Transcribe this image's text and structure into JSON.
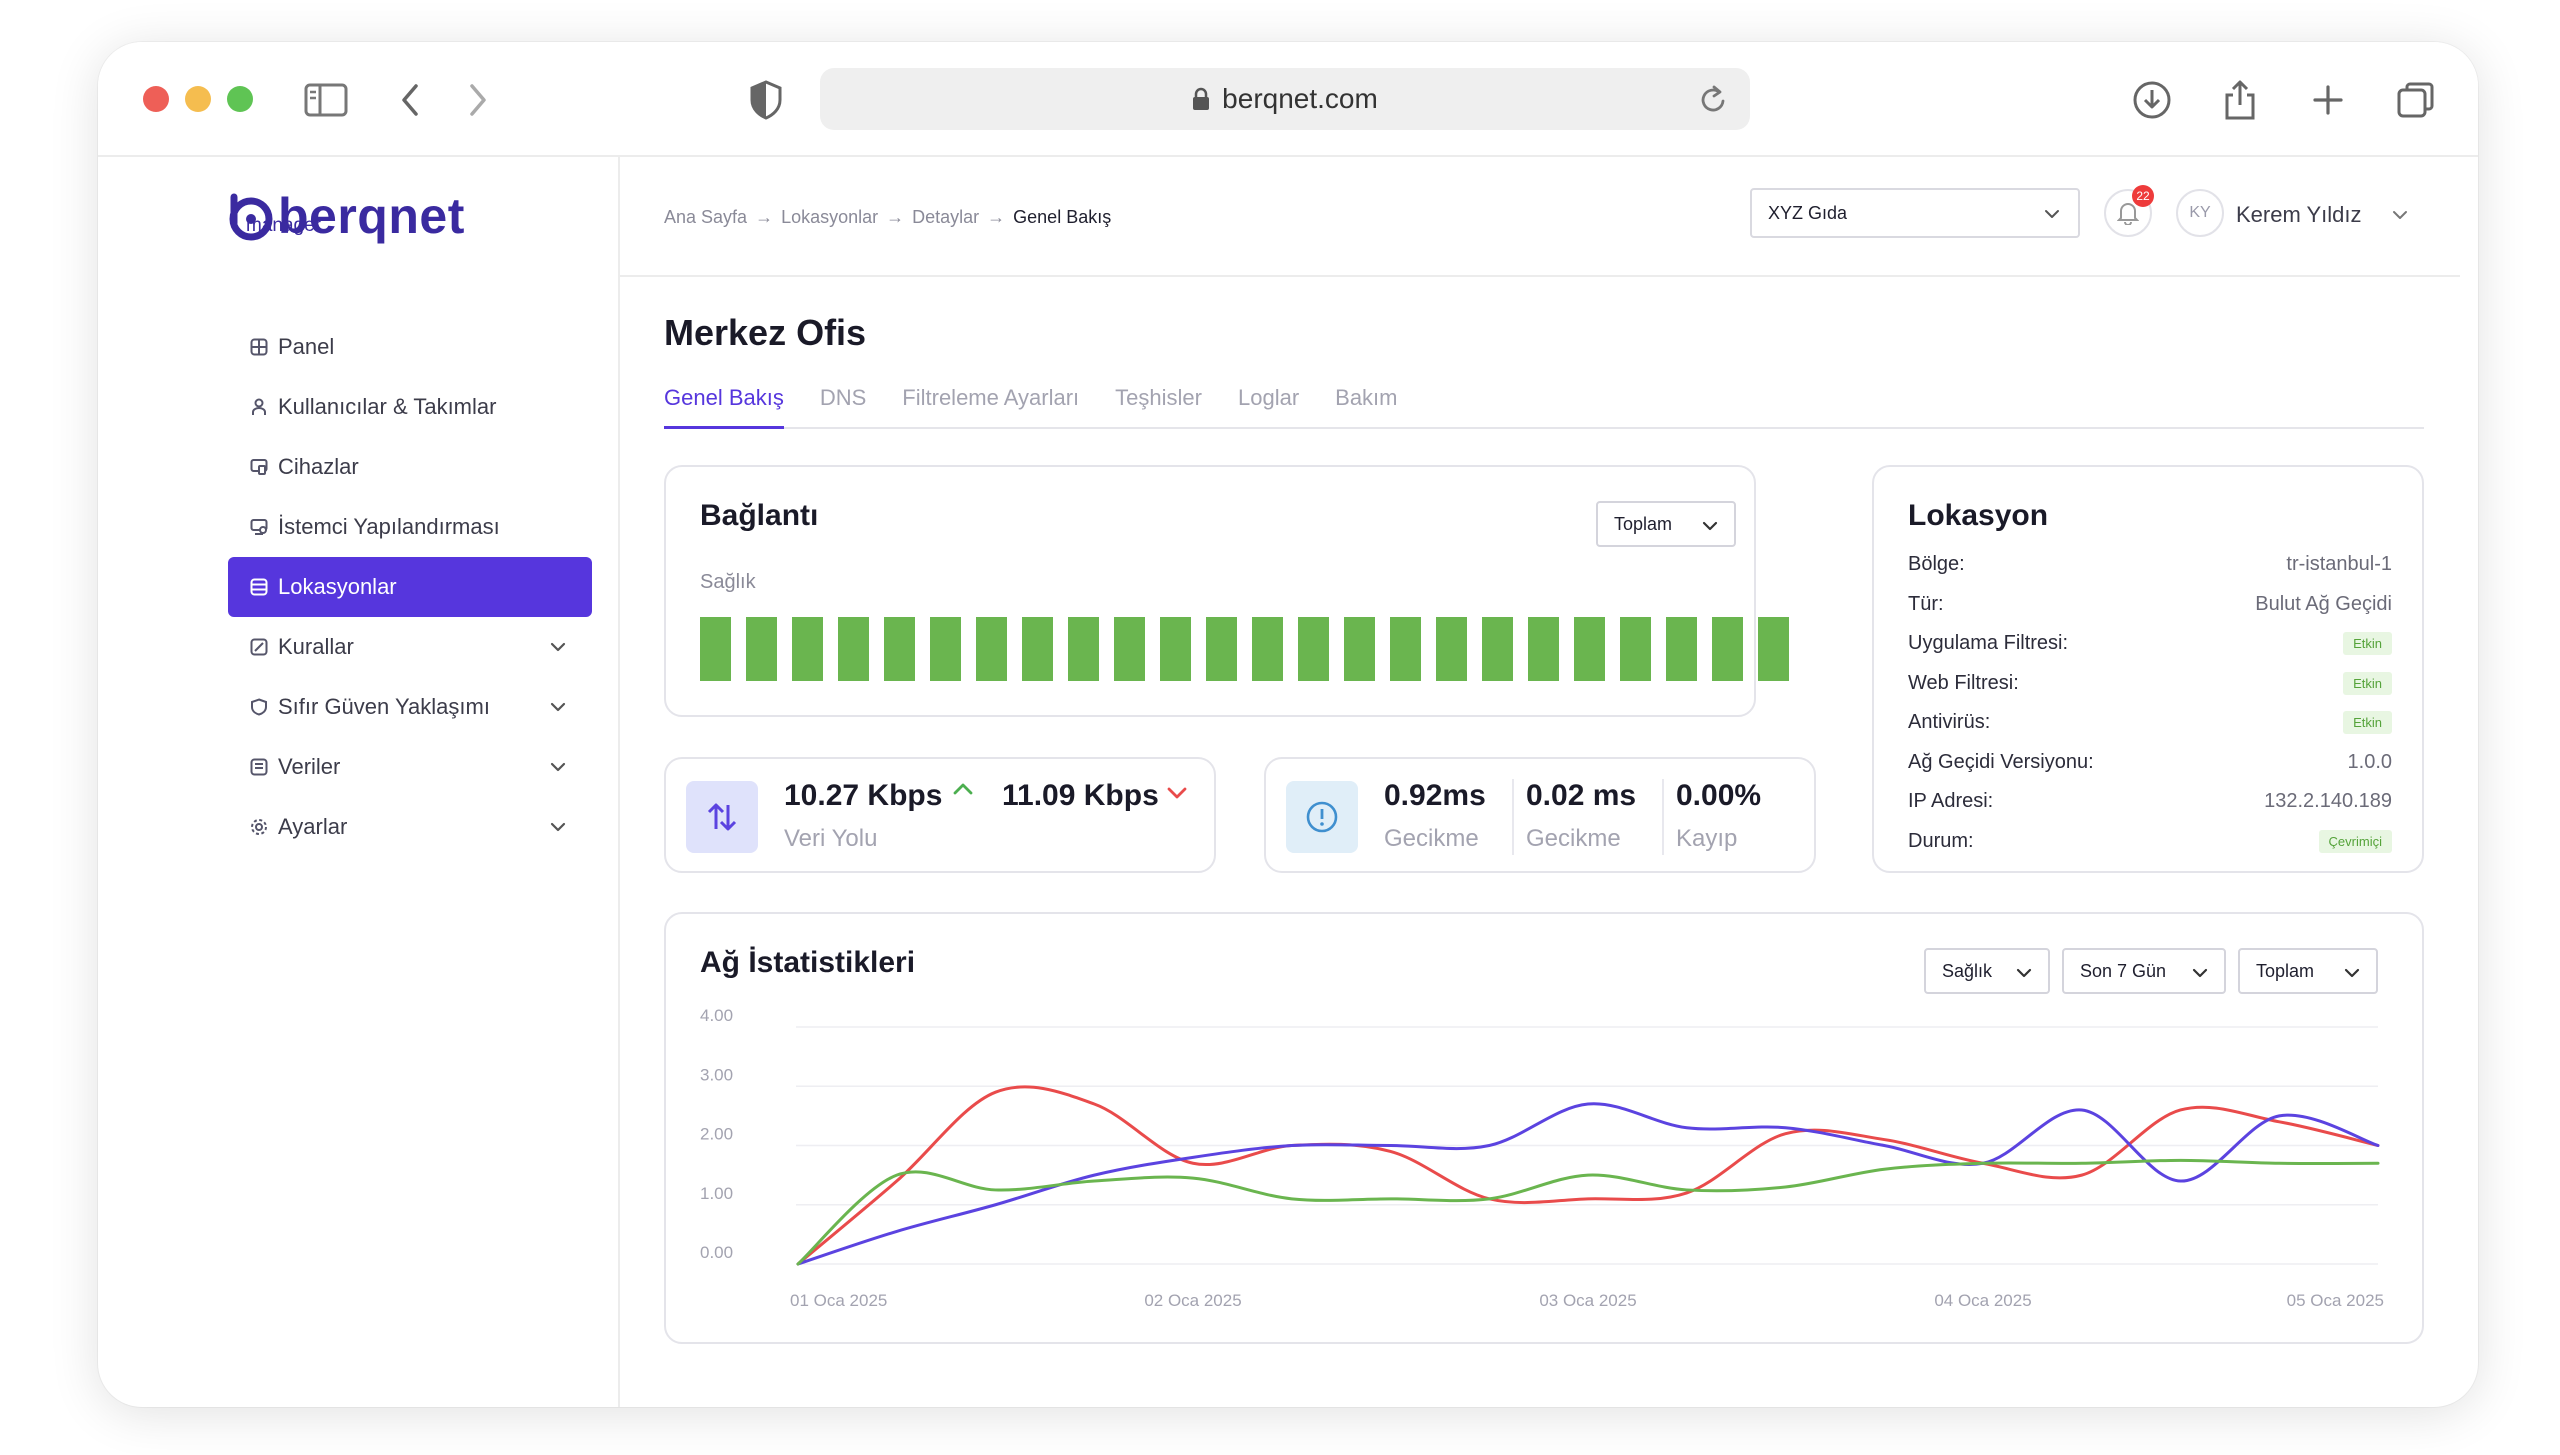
{
  "browser": {
    "url": "berqnet.com"
  },
  "brand": {
    "name": "berqnet",
    "subtitle": "manager",
    "accent": "#5636dd"
  },
  "sidebar": {
    "items": [
      {
        "label": "Panel",
        "icon": "grid-icon"
      },
      {
        "label": "Kullanıcılar & Takımlar",
        "icon": "user-icon"
      },
      {
        "label": "Cihazlar",
        "icon": "devices-icon"
      },
      {
        "label": "İstemci Yapılandırması",
        "icon": "client-config-icon"
      },
      {
        "label": "Lokasyonlar",
        "icon": "location-icon",
        "active": true
      },
      {
        "label": "Kurallar",
        "icon": "rules-icon",
        "expandable": true
      },
      {
        "label": "Sıfır Güven Yaklaşımı",
        "icon": "shield-icon",
        "expandable": true
      },
      {
        "label": "Veriler",
        "icon": "data-icon",
        "expandable": true
      },
      {
        "label": "Ayarlar",
        "icon": "gear-icon",
        "expandable": true
      }
    ]
  },
  "header": {
    "breadcrumb": [
      "Ana Sayfa",
      "Lokasyonlar",
      "Detaylar",
      "Genel Bakış"
    ],
    "org": "XYZ Gıda",
    "notifications": "22",
    "user_initials": "KY",
    "user_name": "Kerem Yıldız"
  },
  "page": {
    "title": "Merkez Ofis",
    "tabs": [
      "Genel Bakış",
      "DNS",
      "Filtreleme Ayarları",
      "Teşhisler",
      "Loglar",
      "Bakım"
    ],
    "active_tab": "Genel Bakış"
  },
  "connection": {
    "title": "Bağlantı",
    "dropdown": "Toplam",
    "health_label": "Sağlık",
    "health_bars": 24,
    "health_color": "#6ab54f"
  },
  "throughput": {
    "up": "10.27 Kbps",
    "down": "11.09 Kbps",
    "label": "Veri Yolu"
  },
  "latency": {
    "items": [
      {
        "value": "0.92ms",
        "label": "Gecikme"
      },
      {
        "value": "0.02 ms",
        "label": "Gecikme"
      },
      {
        "value": "0.00%",
        "label": "Kayıp"
      }
    ]
  },
  "location": {
    "title": "Lokasyon",
    "rows": [
      {
        "key": "Bölge:",
        "value": "tr-istanbul-1"
      },
      {
        "key": "Tür:",
        "value": "Bulut Ağ Geçidi"
      },
      {
        "key": "Uygulama Filtresi:",
        "value": "Etkin",
        "pill": true
      },
      {
        "key": "Web Filtresi:",
        "value": "Etkin",
        "pill": true
      },
      {
        "key": "Antivirüs:",
        "value": "Etkin",
        "pill": true
      },
      {
        "key": "Ağ Geçidi Versiyonu:",
        "value": "1.0.0"
      },
      {
        "key": "IP Adresi:",
        "value": "132.2.140.189"
      },
      {
        "key": "Durum:",
        "value": "Çevrimiçi",
        "pill": true
      }
    ]
  },
  "stats": {
    "title": "Ağ İstatistikleri",
    "filters": [
      "Sağlık",
      "Son 7 Gün",
      "Toplam"
    ]
  },
  "chart_data": {
    "type": "line",
    "title": "Ağ İstatistikleri",
    "ylim": [
      0,
      4
    ],
    "yticks": [
      "0.00",
      "1.00",
      "2.00",
      "3.00",
      "4.00"
    ],
    "xticks": [
      "01 Oca 2025",
      "02 Oca 2025",
      "03 Oca 2025",
      "04 Oca 2025",
      "05 Oca 2025"
    ],
    "x": [
      0,
      0.25,
      0.5,
      0.75,
      1.0,
      1.25,
      1.5,
      1.75,
      2.0,
      2.25,
      2.5,
      2.75,
      3.0,
      3.25,
      3.5,
      3.75,
      4.0
    ],
    "series": [
      {
        "color": "#e94b4b",
        "values": [
          0,
          1.4,
          2.9,
          2.7,
          1.7,
          2.0,
          1.9,
          1.1,
          1.1,
          1.2,
          2.2,
          2.1,
          1.7,
          1.5,
          2.6,
          2.4,
          2.0
        ]
      },
      {
        "color": "#5b43e0",
        "values": [
          0,
          0.55,
          1.0,
          1.5,
          1.8,
          2.0,
          2.0,
          2.0,
          2.7,
          2.3,
          2.3,
          2.0,
          1.7,
          2.6,
          1.4,
          2.5,
          2.0
        ]
      },
      {
        "color": "#6ab54f",
        "values": [
          0,
          1.5,
          1.25,
          1.4,
          1.45,
          1.1,
          1.1,
          1.1,
          1.5,
          1.25,
          1.3,
          1.6,
          1.7,
          1.7,
          1.75,
          1.7,
          1.7
        ]
      }
    ]
  }
}
